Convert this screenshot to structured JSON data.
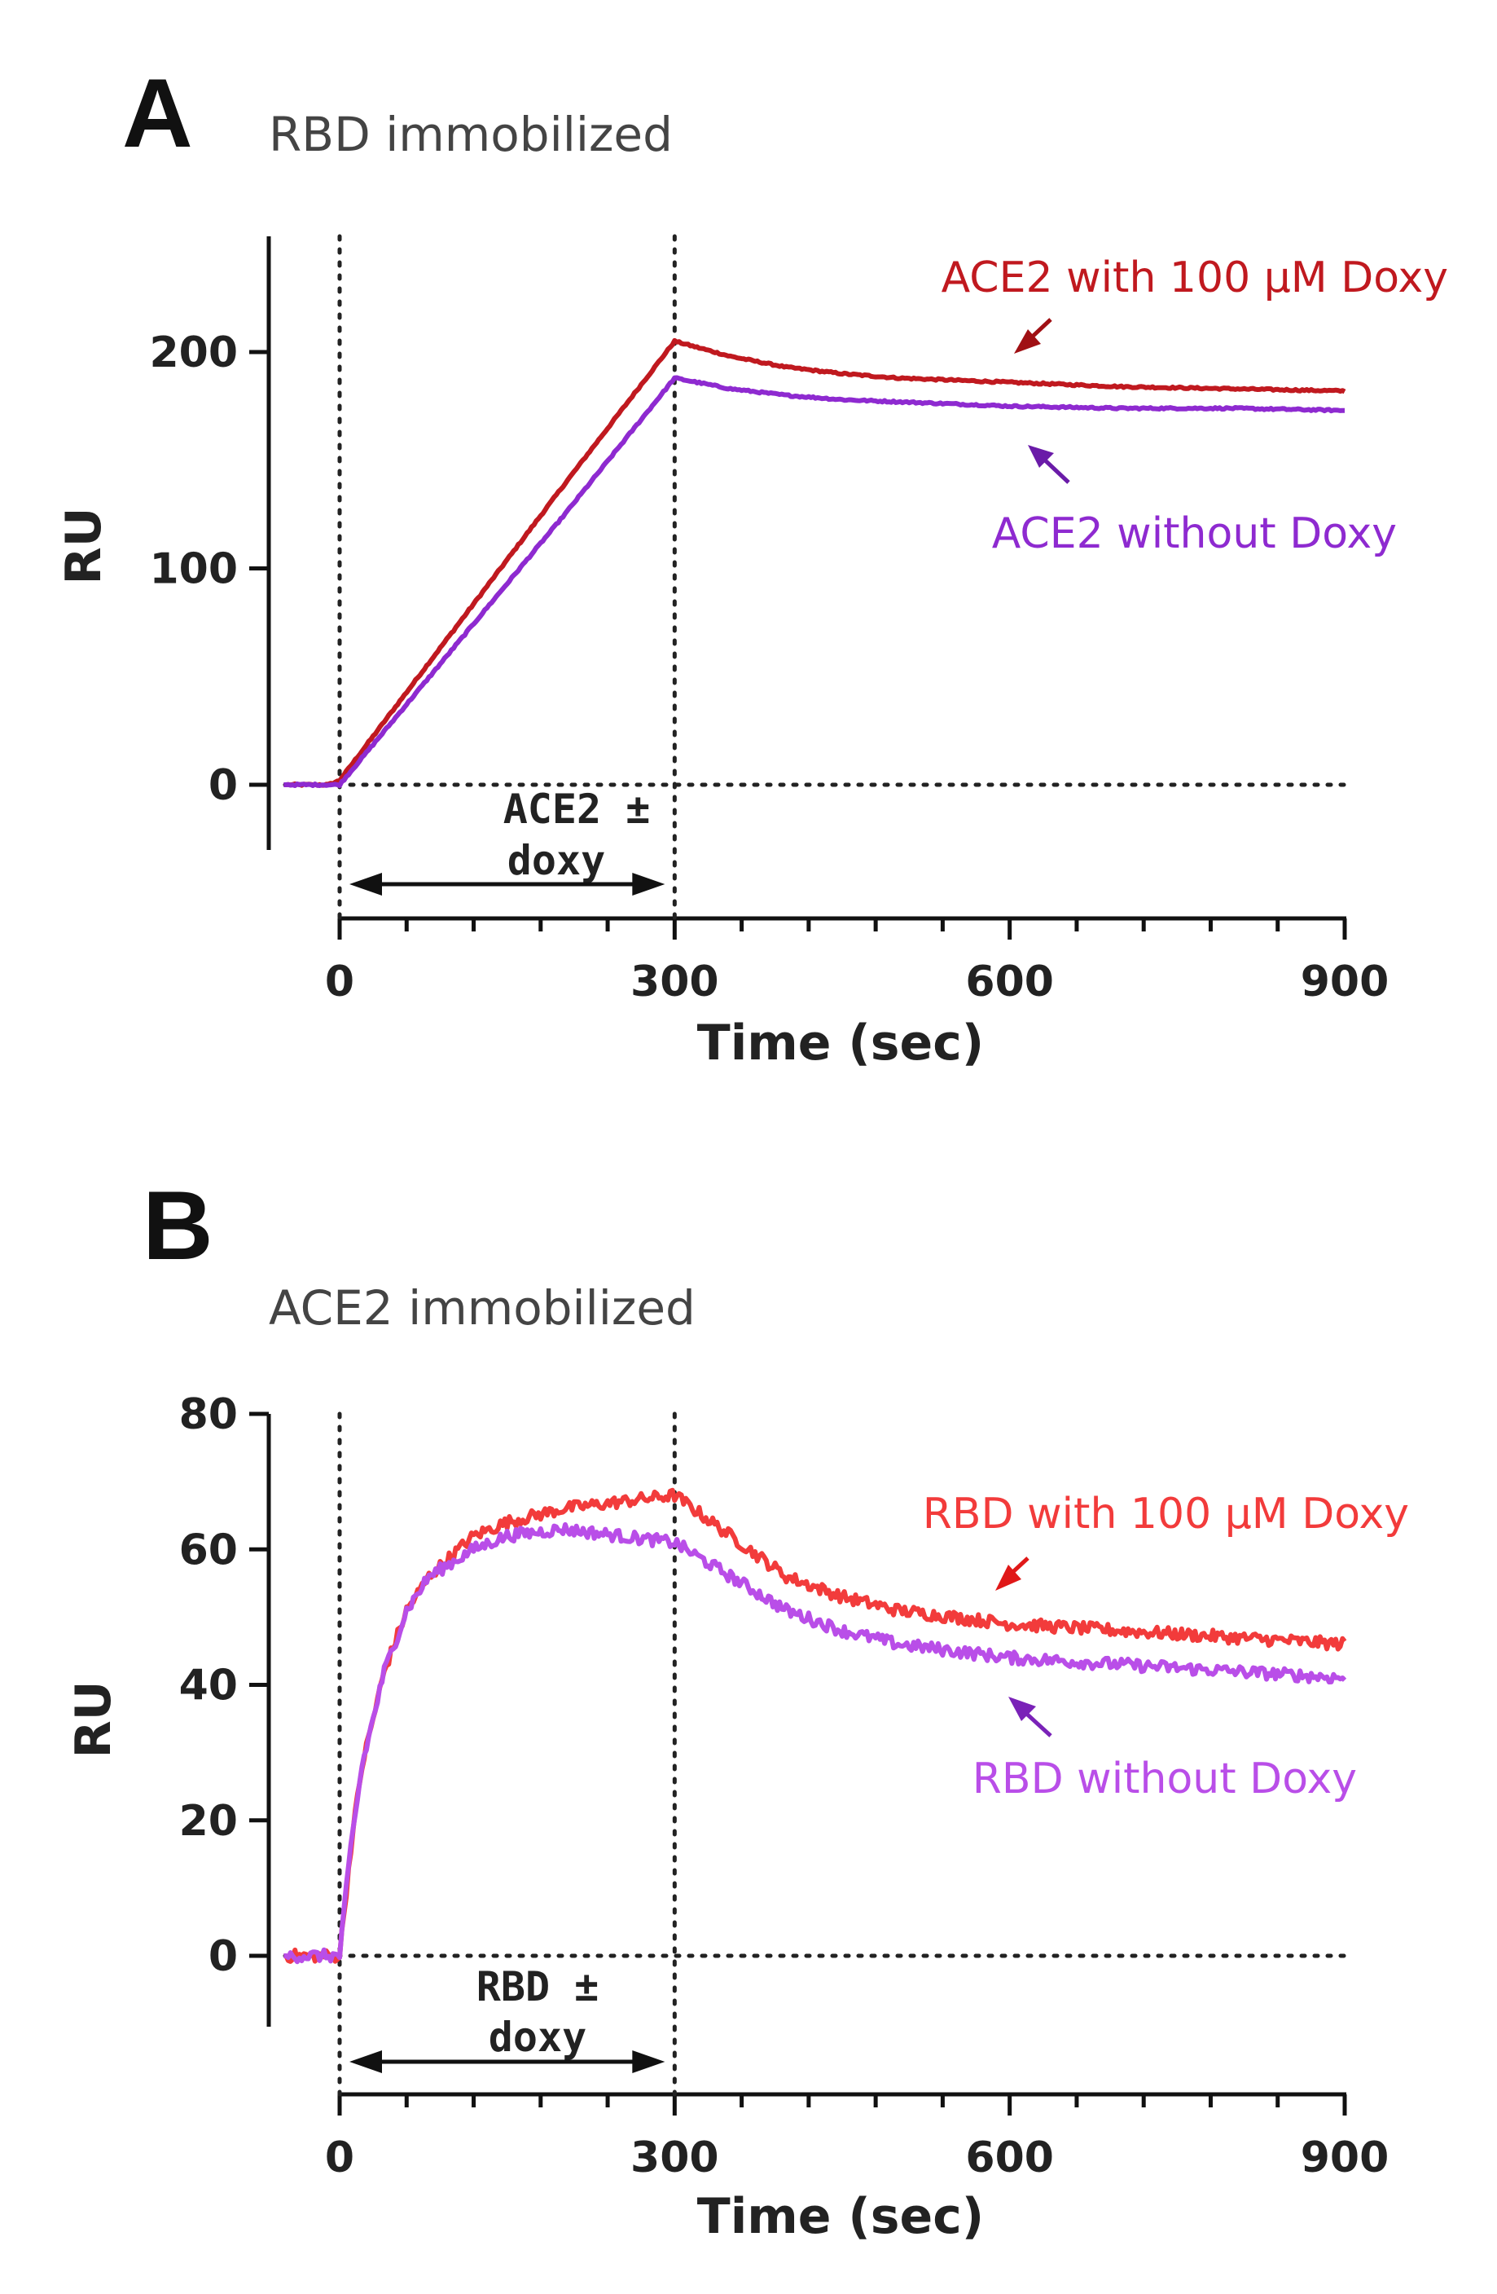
{
  "chart_data": [
    {
      "type": "line",
      "panel_letter": "A",
      "title": "RBD immobilized",
      "xlabel": "Time (sec)",
      "ylabel": "RU",
      "xlim": [
        -60,
        900
      ],
      "ylim": [
        -30,
        250
      ],
      "x_ticks": [
        0,
        300,
        600,
        900
      ],
      "y_ticks": [
        0,
        100,
        200
      ],
      "x_ticks_minor_step": 60,
      "grid": false,
      "injection": {
        "start": 0,
        "end": 300,
        "label_line1": "ACE2 ±",
        "label_line2": "doxy"
      },
      "series": [
        {
          "name": "ACE2 with 100 µM Doxy",
          "color": "#c0191f",
          "arrow_color": "#a01014",
          "label_position": "upper-right",
          "x": [
            -50,
            -10,
            0,
            100,
            200,
            300,
            350,
            400,
            450,
            500,
            550,
            600,
            700,
            800,
            900
          ],
          "y": [
            0,
            0,
            2,
            70,
            138,
            205,
            198,
            193,
            190,
            188,
            187,
            186,
            184,
            183,
            182
          ]
        },
        {
          "name": "ACE2 without Doxy",
          "color": "#8e2ad0",
          "arrow_color": "#6a1ba8",
          "label_position": "middle-right",
          "x": [
            -50,
            -10,
            0,
            100,
            200,
            300,
            350,
            400,
            450,
            500,
            550,
            600,
            700,
            800,
            900
          ],
          "y": [
            0,
            0,
            0,
            62,
            124,
            188,
            183,
            180,
            178,
            177,
            176,
            175,
            174,
            174,
            173
          ]
        }
      ]
    },
    {
      "type": "line",
      "panel_letter": "B",
      "title": "ACE2 immobilized",
      "xlabel": "Time (sec)",
      "ylabel": "RU",
      "xlim": [
        -60,
        900
      ],
      "ylim": [
        -10,
        80
      ],
      "x_ticks": [
        0,
        300,
        600,
        900
      ],
      "y_ticks": [
        0,
        20,
        40,
        60,
        80
      ],
      "x_ticks_minor_step": 60,
      "grid": false,
      "injection": {
        "start": 0,
        "end": 300,
        "label_line1": "RBD ±",
        "label_line2": "doxy"
      },
      "series": [
        {
          "name": "RBD with 100 µM Doxy",
          "color": "#f23b3b",
          "arrow_color": "#e01818",
          "label_position": "upper-right",
          "x": [
            -50,
            -10,
            0,
            10,
            20,
            40,
            60,
            80,
            100,
            120,
            150,
            200,
            250,
            300,
            350,
            400,
            450,
            500,
            550,
            600,
            700,
            800,
            900
          ],
          "y": [
            0,
            0,
            0,
            16,
            28,
            42,
            51,
            56,
            59,
            62,
            64,
            66,
            67,
            68,
            62,
            56,
            53,
            51,
            50,
            49,
            48,
            47,
            46
          ]
        },
        {
          "name": "RBD without Doxy",
          "color": "#b94ee8",
          "arrow_color": "#7a22b8",
          "label_position": "lower-right",
          "x": [
            -50,
            -10,
            0,
            10,
            20,
            40,
            60,
            80,
            100,
            120,
            150,
            200,
            250,
            300,
            350,
            400,
            450,
            500,
            550,
            600,
            700,
            800,
            900
          ],
          "y": [
            0,
            0,
            0,
            16,
            28,
            42,
            51,
            56,
            58,
            60,
            62,
            63,
            62,
            61,
            56,
            51,
            48,
            46,
            45,
            44,
            43,
            42,
            41
          ]
        }
      ]
    }
  ]
}
